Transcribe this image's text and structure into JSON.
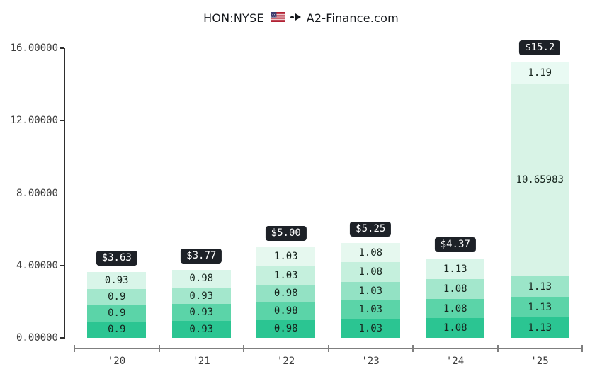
{
  "title": {
    "symbol": "HON:NYSE",
    "flag_icon": "us-flag",
    "arrow_icon": "right-arrow",
    "site": "A2-Finance.com"
  },
  "colors": {
    "badge_bg": "#1d2127",
    "badge_text": "#ffffff",
    "y_axis": "#2e2e2e",
    "x_ruler": "#7f7f7f",
    "tick_text": "#3d3d3d",
    "segment_text": "#17251e",
    "flag_red": "#b22234",
    "flag_white": "#ffffff",
    "flag_blue": "#3c3b6e"
  },
  "chart_data": {
    "type": "bar",
    "stacked": true,
    "title": "HON:NYSE ↠ A2-Finance.com",
    "xlabel": "",
    "ylabel": "",
    "ylim": [
      0,
      16
    ],
    "grid": false,
    "legend": "none",
    "yticks": [
      {
        "value": 0,
        "label": "0.00000"
      },
      {
        "value": 4,
        "label": "4.00000"
      },
      {
        "value": 8,
        "label": "8.00000"
      },
      {
        "value": 12,
        "label": "12.00000"
      },
      {
        "value": 16,
        "label": "16.00000"
      }
    ],
    "categories": [
      "'20",
      "'21",
      "'22",
      "'23",
      "'24",
      "'25"
    ],
    "bars": [
      {
        "category": "'20",
        "total": 3.63,
        "total_label": "$3.63",
        "segments": [
          {
            "value": 0.9,
            "label": "0.9",
            "color": "#2bc592"
          },
          {
            "value": 0.9,
            "label": "0.9",
            "color": "#5bd4a8"
          },
          {
            "value": 0.9,
            "label": "0.9",
            "color": "#a3e7cc"
          },
          {
            "value": 0.93,
            "label": "0.93",
            "color": "#d9f5e9"
          }
        ]
      },
      {
        "category": "'21",
        "total": 3.77,
        "total_label": "$3.77",
        "segments": [
          {
            "value": 0.93,
            "label": "0.93",
            "color": "#2bc592"
          },
          {
            "value": 0.93,
            "label": "0.93",
            "color": "#5bd4a8"
          },
          {
            "value": 0.93,
            "label": "0.93",
            "color": "#a3e7cc"
          },
          {
            "value": 0.98,
            "label": "0.98",
            "color": "#d9f5e9"
          }
        ]
      },
      {
        "category": "'22",
        "total": 5.0,
        "total_label": "$5.00",
        "segments": [
          {
            "value": 0.98,
            "label": "0.98",
            "color": "#2bc592"
          },
          {
            "value": 0.98,
            "label": "0.98",
            "color": "#5bd4a8"
          },
          {
            "value": 0.98,
            "label": "0.98",
            "color": "#93e2c4"
          },
          {
            "value": 1.03,
            "label": "1.03",
            "color": "#c5f0dd"
          },
          {
            "value": 1.03,
            "label": "1.03",
            "color": "#e6f8ef"
          }
        ]
      },
      {
        "category": "'23",
        "total": 5.25,
        "total_label": "$5.25",
        "segments": [
          {
            "value": 1.03,
            "label": "1.03",
            "color": "#2bc592"
          },
          {
            "value": 1.03,
            "label": "1.03",
            "color": "#5bd4a8"
          },
          {
            "value": 1.03,
            "label": "1.03",
            "color": "#93e2c4"
          },
          {
            "value": 1.08,
            "label": "1.08",
            "color": "#c5f0dd"
          },
          {
            "value": 1.08,
            "label": "1.08",
            "color": "#e6f8ef"
          }
        ]
      },
      {
        "category": "'24",
        "total": 4.37,
        "total_label": "$4.37",
        "segments": [
          {
            "value": 1.08,
            "label": "1.08",
            "color": "#2bc592"
          },
          {
            "value": 1.08,
            "label": "1.08",
            "color": "#5bd4a8"
          },
          {
            "value": 1.08,
            "label": "1.08",
            "color": "#a3e7cc"
          },
          {
            "value": 1.13,
            "label": "1.13",
            "color": "#d9f5e9"
          }
        ]
      },
      {
        "category": "'25",
        "total": 15.2,
        "total_label": "$15.2",
        "segments": [
          {
            "value": 1.13,
            "label": "1.13",
            "color": "#2bc592"
          },
          {
            "value": 1.13,
            "label": "1.13",
            "color": "#5bd4a8"
          },
          {
            "value": 1.13,
            "label": "1.13",
            "color": "#9be5c8"
          },
          {
            "value": 10.65983,
            "label": "10.65983",
            "color": "#d8f3e6"
          },
          {
            "value": 1.19,
            "label": "1.19",
            "color": "#e9faf3"
          }
        ]
      }
    ]
  }
}
